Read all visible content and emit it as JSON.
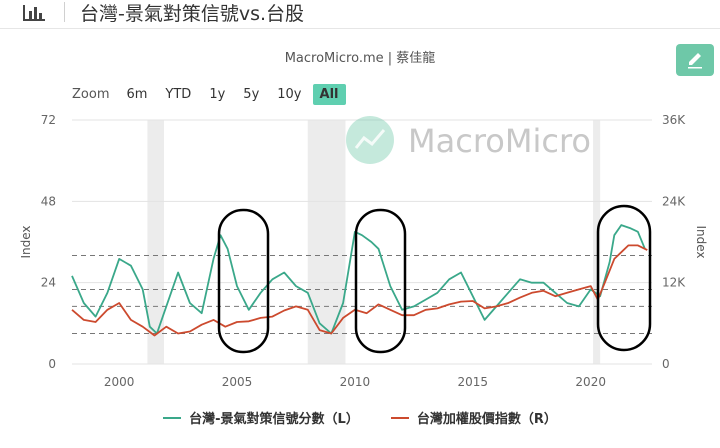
{
  "header": {
    "title": "台灣-景氣對策信號vs.台股"
  },
  "source": "MacroMicro.me | 蔡佳龍",
  "zoom": {
    "label": "Zoom",
    "buttons": [
      "6m",
      "YTD",
      "1y",
      "5y",
      "10y",
      "All"
    ],
    "active": "All"
  },
  "watermark": "MacroMicro",
  "icons": {
    "chart": "bar-chart-icon",
    "edit": "pencil-icon",
    "watermark": "macromicro-logo-icon"
  },
  "colors": {
    "left_series": "#3aa88a",
    "right_series": "#cc4a2e",
    "accent": "#5fcfb0"
  },
  "chart_data": {
    "type": "line",
    "x_ticks": [
      2000,
      2005,
      2010,
      2015,
      2020
    ],
    "xlim": [
      1998,
      2022.6
    ],
    "left_axis": {
      "label": "Index",
      "ticks": [
        0,
        24,
        48,
        72
      ],
      "ylim": [
        0,
        72
      ]
    },
    "right_axis": {
      "label": "Index",
      "ticks": [
        "0",
        "12K",
        "24K",
        "36K"
      ],
      "ylim": [
        0,
        36000
      ]
    },
    "grid": {
      "horizontal_solid": true
    },
    "reference_lines_left": [
      32,
      22,
      17,
      9
    ],
    "shaded_ranges": [
      [
        2001.2,
        2001.9
      ],
      [
        2008.0,
        2009.6
      ],
      [
        2020.1,
        2020.4
      ]
    ],
    "series": [
      {
        "name": "台灣-景氣對策信號分數（L）",
        "axis": "left",
        "x": [
          1998.0,
          1998.5,
          1999.0,
          1999.5,
          2000.0,
          2000.5,
          2001.0,
          2001.3,
          2001.6,
          2002.0,
          2002.5,
          2003.0,
          2003.5,
          2004.0,
          2004.3,
          2004.6,
          2005.0,
          2005.5,
          2006.0,
          2006.5,
          2007.0,
          2007.5,
          2008.0,
          2008.5,
          2009.0,
          2009.5,
          2010.0,
          2010.3,
          2010.7,
          2011.0,
          2011.5,
          2012.0,
          2012.5,
          2013.0,
          2013.5,
          2014.0,
          2014.5,
          2015.0,
          2015.5,
          2016.0,
          2016.5,
          2017.0,
          2017.5,
          2018.0,
          2018.5,
          2019.0,
          2019.5,
          2020.0,
          2020.4,
          2020.8,
          2021.0,
          2021.3,
          2021.7,
          2022.0,
          2022.3
        ],
        "values": [
          26,
          18,
          14,
          21,
          31,
          29,
          22,
          11,
          9,
          17,
          27,
          18,
          15,
          31,
          38,
          34,
          23,
          16,
          21,
          25,
          27,
          23,
          21,
          12,
          9,
          18,
          39,
          38,
          36,
          34,
          23,
          16,
          17,
          19,
          21,
          25,
          27,
          20,
          13,
          17,
          21,
          25,
          24,
          24,
          21,
          18,
          17,
          22,
          20,
          30,
          38,
          41,
          40,
          39,
          34
        ]
      },
      {
        "name": "台灣加權股價指數（R）",
        "axis": "right",
        "x": [
          1998.0,
          1998.5,
          1999.0,
          1999.5,
          2000.0,
          2000.5,
          2001.0,
          2001.5,
          2002.0,
          2002.5,
          2003.0,
          2003.5,
          2004.0,
          2004.5,
          2005.0,
          2005.5,
          2006.0,
          2006.5,
          2007.0,
          2007.5,
          2008.0,
          2008.5,
          2009.0,
          2009.5,
          2010.0,
          2010.5,
          2011.0,
          2011.5,
          2012.0,
          2012.5,
          2013.0,
          2013.5,
          2014.0,
          2014.5,
          2015.0,
          2015.5,
          2016.0,
          2016.5,
          2017.0,
          2017.5,
          2018.0,
          2018.5,
          2019.0,
          2019.5,
          2020.0,
          2020.3,
          2020.6,
          2021.0,
          2021.3,
          2021.6,
          2022.0,
          2022.4
        ],
        "values": [
          8000,
          6500,
          6200,
          8000,
          9000,
          6500,
          5500,
          4200,
          5500,
          4500,
          4800,
          5800,
          6500,
          5500,
          6200,
          6300,
          6800,
          7000,
          7900,
          8500,
          8000,
          5000,
          4500,
          6800,
          8000,
          7500,
          8800,
          8000,
          7200,
          7200,
          8000,
          8200,
          8800,
          9200,
          9300,
          8200,
          8500,
          9000,
          9800,
          10500,
          10800,
          10000,
          10500,
          11000,
          11500,
          9500,
          12000,
          15500,
          16500,
          17500,
          17500,
          16800
        ]
      }
    ]
  }
}
